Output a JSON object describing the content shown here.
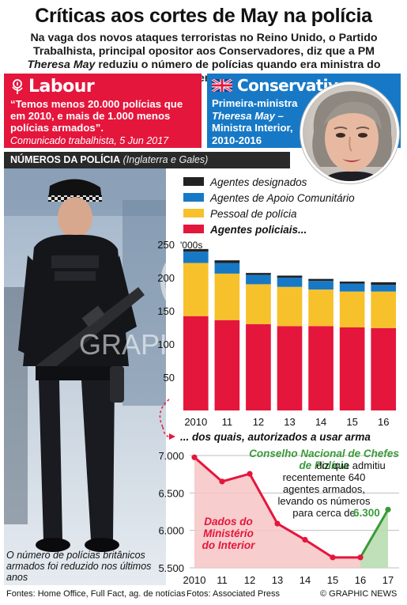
{
  "header": {
    "title": "Críticas aos cortes de May na polícia",
    "subtitle_part1": "Na vaga dos novos ataques terroristas no Reino Unido, o Partido Trabalhista, principal opositor aos Conservadores, diz que a PM ",
    "subtitle_italic1": "Theresa",
    "subtitle_part2": " ",
    "subtitle_italic2": "May",
    "subtitle_part3": " reduziu o número de polícias quando era ministra do Interior"
  },
  "labour": {
    "logo": "Labour",
    "logo_icon": "rose-icon",
    "color": "#e4163c",
    "quote": "“Temos menos 20.000 polícias que em 2010, e mais de 1.000 menos polícias armados”.",
    "source": "Comunicado trabalhista, 5 Jun 2017"
  },
  "conservatives": {
    "logo": "Conservatives",
    "logo_icon": "union-flag-icon",
    "color": "#1779c6",
    "line1": "Primeira-ministra",
    "line2": "Theresa May –",
    "line3": "Ministra Interior,",
    "line4": "2010-2016"
  },
  "section": {
    "title": "NÚMEROS DA POLÍCIA",
    "region": "(Inglaterra e Gales)"
  },
  "photo_caption": "O número de polícias britânicos armados foi reduzido nos últimos anos",
  "footer": {
    "sources": "Fontes: Home Office, Full Fact, ag. de notícias",
    "photos": "Fotos: Associated Press",
    "brand": "© GRAPHIC NEWS"
  },
  "chart_data": [
    {
      "type": "bar",
      "stacked": true,
      "categories": [
        "2010",
        "11",
        "12",
        "13",
        "14",
        "15",
        "16"
      ],
      "unit_label": "'000s",
      "ylim": [
        0,
        250
      ],
      "yticks": [
        0,
        50,
        100,
        150,
        200,
        250
      ],
      "grid": false,
      "legend_position": "top",
      "series": [
        {
          "name": "Agentes policiais...",
          "color": "#e4163c",
          "values": [
            142,
            136,
            130,
            127,
            127,
            125,
            124
          ]
        },
        {
          "name": "Pessoal de polícia",
          "color": "#f7c12c",
          "values": [
            80,
            70,
            60,
            59,
            55,
            54,
            55
          ]
        },
        {
          "name": "Agentes de Apoio Comunitário",
          "color": "#1779c6",
          "values": [
            17,
            16,
            14,
            14,
            13,
            12,
            10
          ]
        },
        {
          "name": "Agentes designados",
          "color": "#222222",
          "values": [
            4,
            4,
            3,
            3,
            3,
            3,
            4
          ]
        }
      ]
    },
    {
      "type": "line",
      "title": "... dos quais, autorizados a usar arma",
      "x": [
        "2010",
        "11",
        "12",
        "13",
        "14",
        "15",
        "16",
        "17"
      ],
      "official_series": {
        "name": "Dados do Ministério do Interior",
        "color": "#e4163c",
        "values": [
          6976,
          6653,
          6756,
          6091,
          5875,
          5639,
          5639
        ]
      },
      "ncc_series": {
        "name": "Conselho Nacional de Chefes de Polícia",
        "color": "#3a9a3a",
        "values": [
          5639,
          6278
        ]
      },
      "ylim": [
        5500,
        7000
      ],
      "yticks": [
        5500,
        6000,
        6500,
        7000
      ],
      "ytick_labels": [
        "5.500",
        "6.000",
        "6.500",
        "7.000"
      ],
      "grid": true,
      "annotation_official": [
        "Dados do",
        "Ministério",
        "do Interior"
      ],
      "annotation_ncc_title": [
        "Conselho Nacional de Chefes",
        "de Polícia"
      ],
      "annotation_ncc_body": [
        "diz que admitiu",
        "recentemente 640",
        "agentes armados,",
        "levando os números",
        "para cerca de"
      ],
      "annotation_ncc_value": "6.300"
    }
  ]
}
